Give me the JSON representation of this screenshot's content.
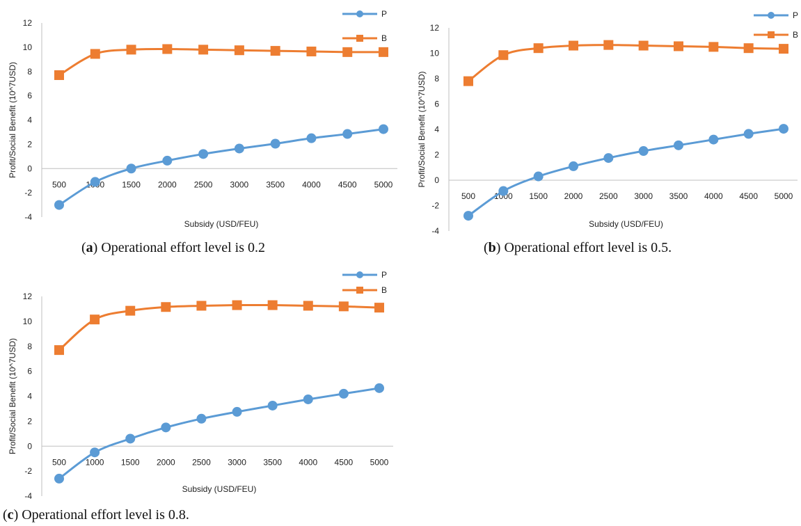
{
  "chart_data": [
    {
      "type": "line",
      "caption": {
        "letter": "a",
        "text": " Operational effort level is 0.2"
      },
      "categories": [
        "500",
        "1000",
        "1500",
        "2000",
        "2500",
        "3000",
        "3500",
        "4000",
        "4500",
        "5000"
      ],
      "series": [
        {
          "name": "P",
          "color": "#5b9bd5",
          "marker": "circle",
          "values": [
            -3.0,
            -1.1,
            0.0,
            0.65,
            1.2,
            1.65,
            2.05,
            2.5,
            2.85,
            3.25
          ]
        },
        {
          "name": "B",
          "color": "#ed7d31",
          "marker": "square",
          "values": [
            7.7,
            9.45,
            9.8,
            9.85,
            9.8,
            9.75,
            9.7,
            9.65,
            9.6,
            9.6
          ]
        }
      ],
      "xlabel": "Subsidy (USD/FEU)",
      "ylabel": "Profit/Social Benefit (10^7USD)",
      "ylim": [
        -4,
        12
      ],
      "yticks": [
        "-4",
        "-2",
        "0",
        "2",
        "4",
        "6",
        "8",
        "10",
        "12"
      ],
      "grid": false,
      "legend": "top-right"
    },
    {
      "type": "line",
      "caption": {
        "letter": "b",
        "text": " Operational effort level is 0.5."
      },
      "categories": [
        "500",
        "1000",
        "1500",
        "2000",
        "2500",
        "3000",
        "3500",
        "4000",
        "4500",
        "5000"
      ],
      "series": [
        {
          "name": "P",
          "color": "#5b9bd5",
          "marker": "circle",
          "values": [
            -2.8,
            -0.85,
            0.3,
            1.1,
            1.75,
            2.3,
            2.75,
            3.2,
            3.65,
            4.05
          ]
        },
        {
          "name": "B",
          "color": "#ed7d31",
          "marker": "square",
          "values": [
            7.8,
            9.85,
            10.4,
            10.6,
            10.65,
            10.6,
            10.55,
            10.5,
            10.4,
            10.35
          ]
        }
      ],
      "xlabel": "Subsidy (USD/FEU)",
      "ylabel": "Profit/Social Benefit (10^7USD)",
      "ylim": [
        -4,
        12
      ],
      "yticks": [
        "-4",
        "-2",
        "0",
        "2",
        "4",
        "6",
        "8",
        "10",
        "12"
      ],
      "grid": false,
      "legend": "top-right"
    },
    {
      "type": "line",
      "caption": {
        "letter": "c",
        "text": " Operational effort level is 0.8."
      },
      "categories": [
        "500",
        "1000",
        "1500",
        "2000",
        "2500",
        "3000",
        "3500",
        "4000",
        "4500",
        "5000"
      ],
      "series": [
        {
          "name": "P",
          "color": "#5b9bd5",
          "marker": "circle",
          "values": [
            -2.6,
            -0.5,
            0.6,
            1.5,
            2.2,
            2.75,
            3.25,
            3.75,
            4.2,
            4.65
          ]
        },
        {
          "name": "B",
          "color": "#ed7d31",
          "marker": "square",
          "values": [
            7.7,
            10.15,
            10.85,
            11.15,
            11.25,
            11.3,
            11.3,
            11.25,
            11.2,
            11.1
          ]
        }
      ],
      "xlabel": "Subsidy (USD/FEU)",
      "ylabel": "Profit/Social Benefit (10^7USD)",
      "ylim": [
        -4,
        12
      ],
      "yticks": [
        "-4",
        "-2",
        "0",
        "2",
        "4",
        "6",
        "8",
        "10",
        "12"
      ],
      "grid": false,
      "legend": "top-right"
    }
  ]
}
